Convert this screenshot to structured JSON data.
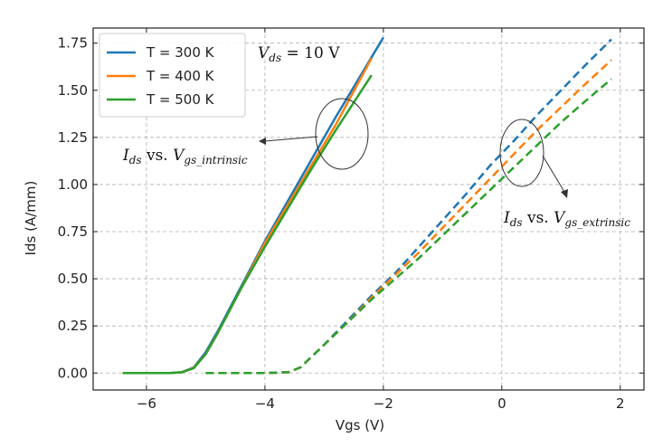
{
  "chart_data": {
    "type": "line",
    "xlabel": "Vgs (V)",
    "ylabel": "Ids (A/mm)",
    "xlim": [
      -6.9,
      2.4
    ],
    "ylim": [
      -0.09,
      1.83
    ],
    "xticks": [
      -6,
      -4,
      -2,
      0,
      2
    ],
    "xtick_labels": [
      "−6",
      "−4",
      "−2",
      "0",
      "2"
    ],
    "yticks": [
      0.0,
      0.25,
      0.5,
      0.75,
      1.0,
      1.25,
      1.5,
      1.75
    ],
    "ytick_labels": [
      "0.00",
      "0.25",
      "0.50",
      "0.75",
      "1.00",
      "1.25",
      "1.50",
      "1.75"
    ],
    "grid": true,
    "legend_position": "top-left",
    "series": [
      {
        "name": "T = 300 K",
        "color": "#1f77b4",
        "intrinsic": {
          "x": [
            -6.4,
            -6.0,
            -5.6,
            -5.4,
            -5.2,
            -5.0,
            -4.8,
            -4.6,
            -4.4,
            -4.2,
            -4.0,
            -3.6,
            -3.2,
            -2.8,
            -2.4,
            -2.0
          ],
          "y": [
            0.0,
            0.0,
            0.0,
            0.005,
            0.03,
            0.11,
            0.22,
            0.34,
            0.46,
            0.58,
            0.7,
            0.92,
            1.14,
            1.36,
            1.57,
            1.78
          ]
        },
        "extrinsic": {
          "x": [
            -5.0,
            -4.5,
            -4.0,
            -3.6,
            -3.4,
            -3.2,
            -3.0,
            -2.6,
            -2.2,
            -1.8,
            -1.4,
            -1.0,
            -0.6,
            -0.2,
            0.2,
            0.6,
            1.0,
            1.4,
            1.85
          ],
          "y": [
            0.0,
            0.0,
            0.0,
            0.005,
            0.03,
            0.09,
            0.15,
            0.28,
            0.41,
            0.53,
            0.67,
            0.81,
            0.95,
            1.1,
            1.23,
            1.37,
            1.5,
            1.63,
            1.77
          ]
        }
      },
      {
        "name": "T = 400 K",
        "color": "#ff7f0e",
        "intrinsic": {
          "x": [
            -6.4,
            -6.0,
            -5.6,
            -5.4,
            -5.2,
            -5.0,
            -4.8,
            -4.6,
            -4.4,
            -4.2,
            -4.0,
            -3.6,
            -3.2,
            -2.8,
            -2.2
          ],
          "y": [
            0.0,
            0.0,
            0.0,
            0.004,
            0.028,
            0.1,
            0.21,
            0.33,
            0.45,
            0.57,
            0.69,
            0.9,
            1.11,
            1.32,
            1.67
          ]
        },
        "extrinsic": {
          "x": [
            -5.0,
            -4.5,
            -4.0,
            -3.6,
            -3.4,
            -3.2,
            -3.0,
            -2.6,
            -2.2,
            -1.8,
            -1.4,
            -1.0,
            -0.6,
            -0.2,
            0.2,
            0.6,
            1.0,
            1.4,
            1.85
          ],
          "y": [
            0.0,
            0.0,
            0.0,
            0.004,
            0.03,
            0.09,
            0.15,
            0.27,
            0.4,
            0.52,
            0.64,
            0.77,
            0.9,
            1.03,
            1.16,
            1.29,
            1.41,
            1.53,
            1.66
          ]
        }
      },
      {
        "name": "T = 500 K",
        "color": "#2ca02c",
        "intrinsic": {
          "x": [
            -6.4,
            -6.0,
            -5.6,
            -5.4,
            -5.2,
            -5.0,
            -4.8,
            -4.6,
            -4.4,
            -4.2,
            -4.0,
            -3.6,
            -3.2,
            -2.8,
            -2.2
          ],
          "y": [
            0.0,
            0.0,
            0.0,
            0.004,
            0.026,
            0.1,
            0.21,
            0.33,
            0.45,
            0.56,
            0.67,
            0.88,
            1.09,
            1.29,
            1.58
          ]
        },
        "extrinsic": {
          "x": [
            -5.0,
            -4.5,
            -4.0,
            -3.6,
            -3.4,
            -3.2,
            -3.0,
            -2.6,
            -2.2,
            -1.8,
            -1.4,
            -1.0,
            -0.6,
            -0.2,
            0.2,
            0.6,
            1.0,
            1.4,
            1.85
          ],
          "y": [
            0.0,
            0.0,
            0.0,
            0.004,
            0.03,
            0.09,
            0.15,
            0.27,
            0.39,
            0.5,
            0.61,
            0.73,
            0.85,
            0.97,
            1.09,
            1.21,
            1.33,
            1.44,
            1.56
          ]
        }
      }
    ],
    "annotations": {
      "vds_var": "V",
      "vds_sub": "ds",
      "vds_value": " = 10 V",
      "intrinsic_i": "I",
      "intrinsic_i_sub": "ds",
      "intrinsic_vs": " vs. ",
      "intrinsic_v": "V",
      "intrinsic_v_sub": "gs_intrinsic",
      "extrinsic_i": "I",
      "extrinsic_i_sub": "ds",
      "extrinsic_vs": " vs. ",
      "extrinsic_v": "V",
      "extrinsic_v_sub": "gs_extrinsic"
    }
  }
}
